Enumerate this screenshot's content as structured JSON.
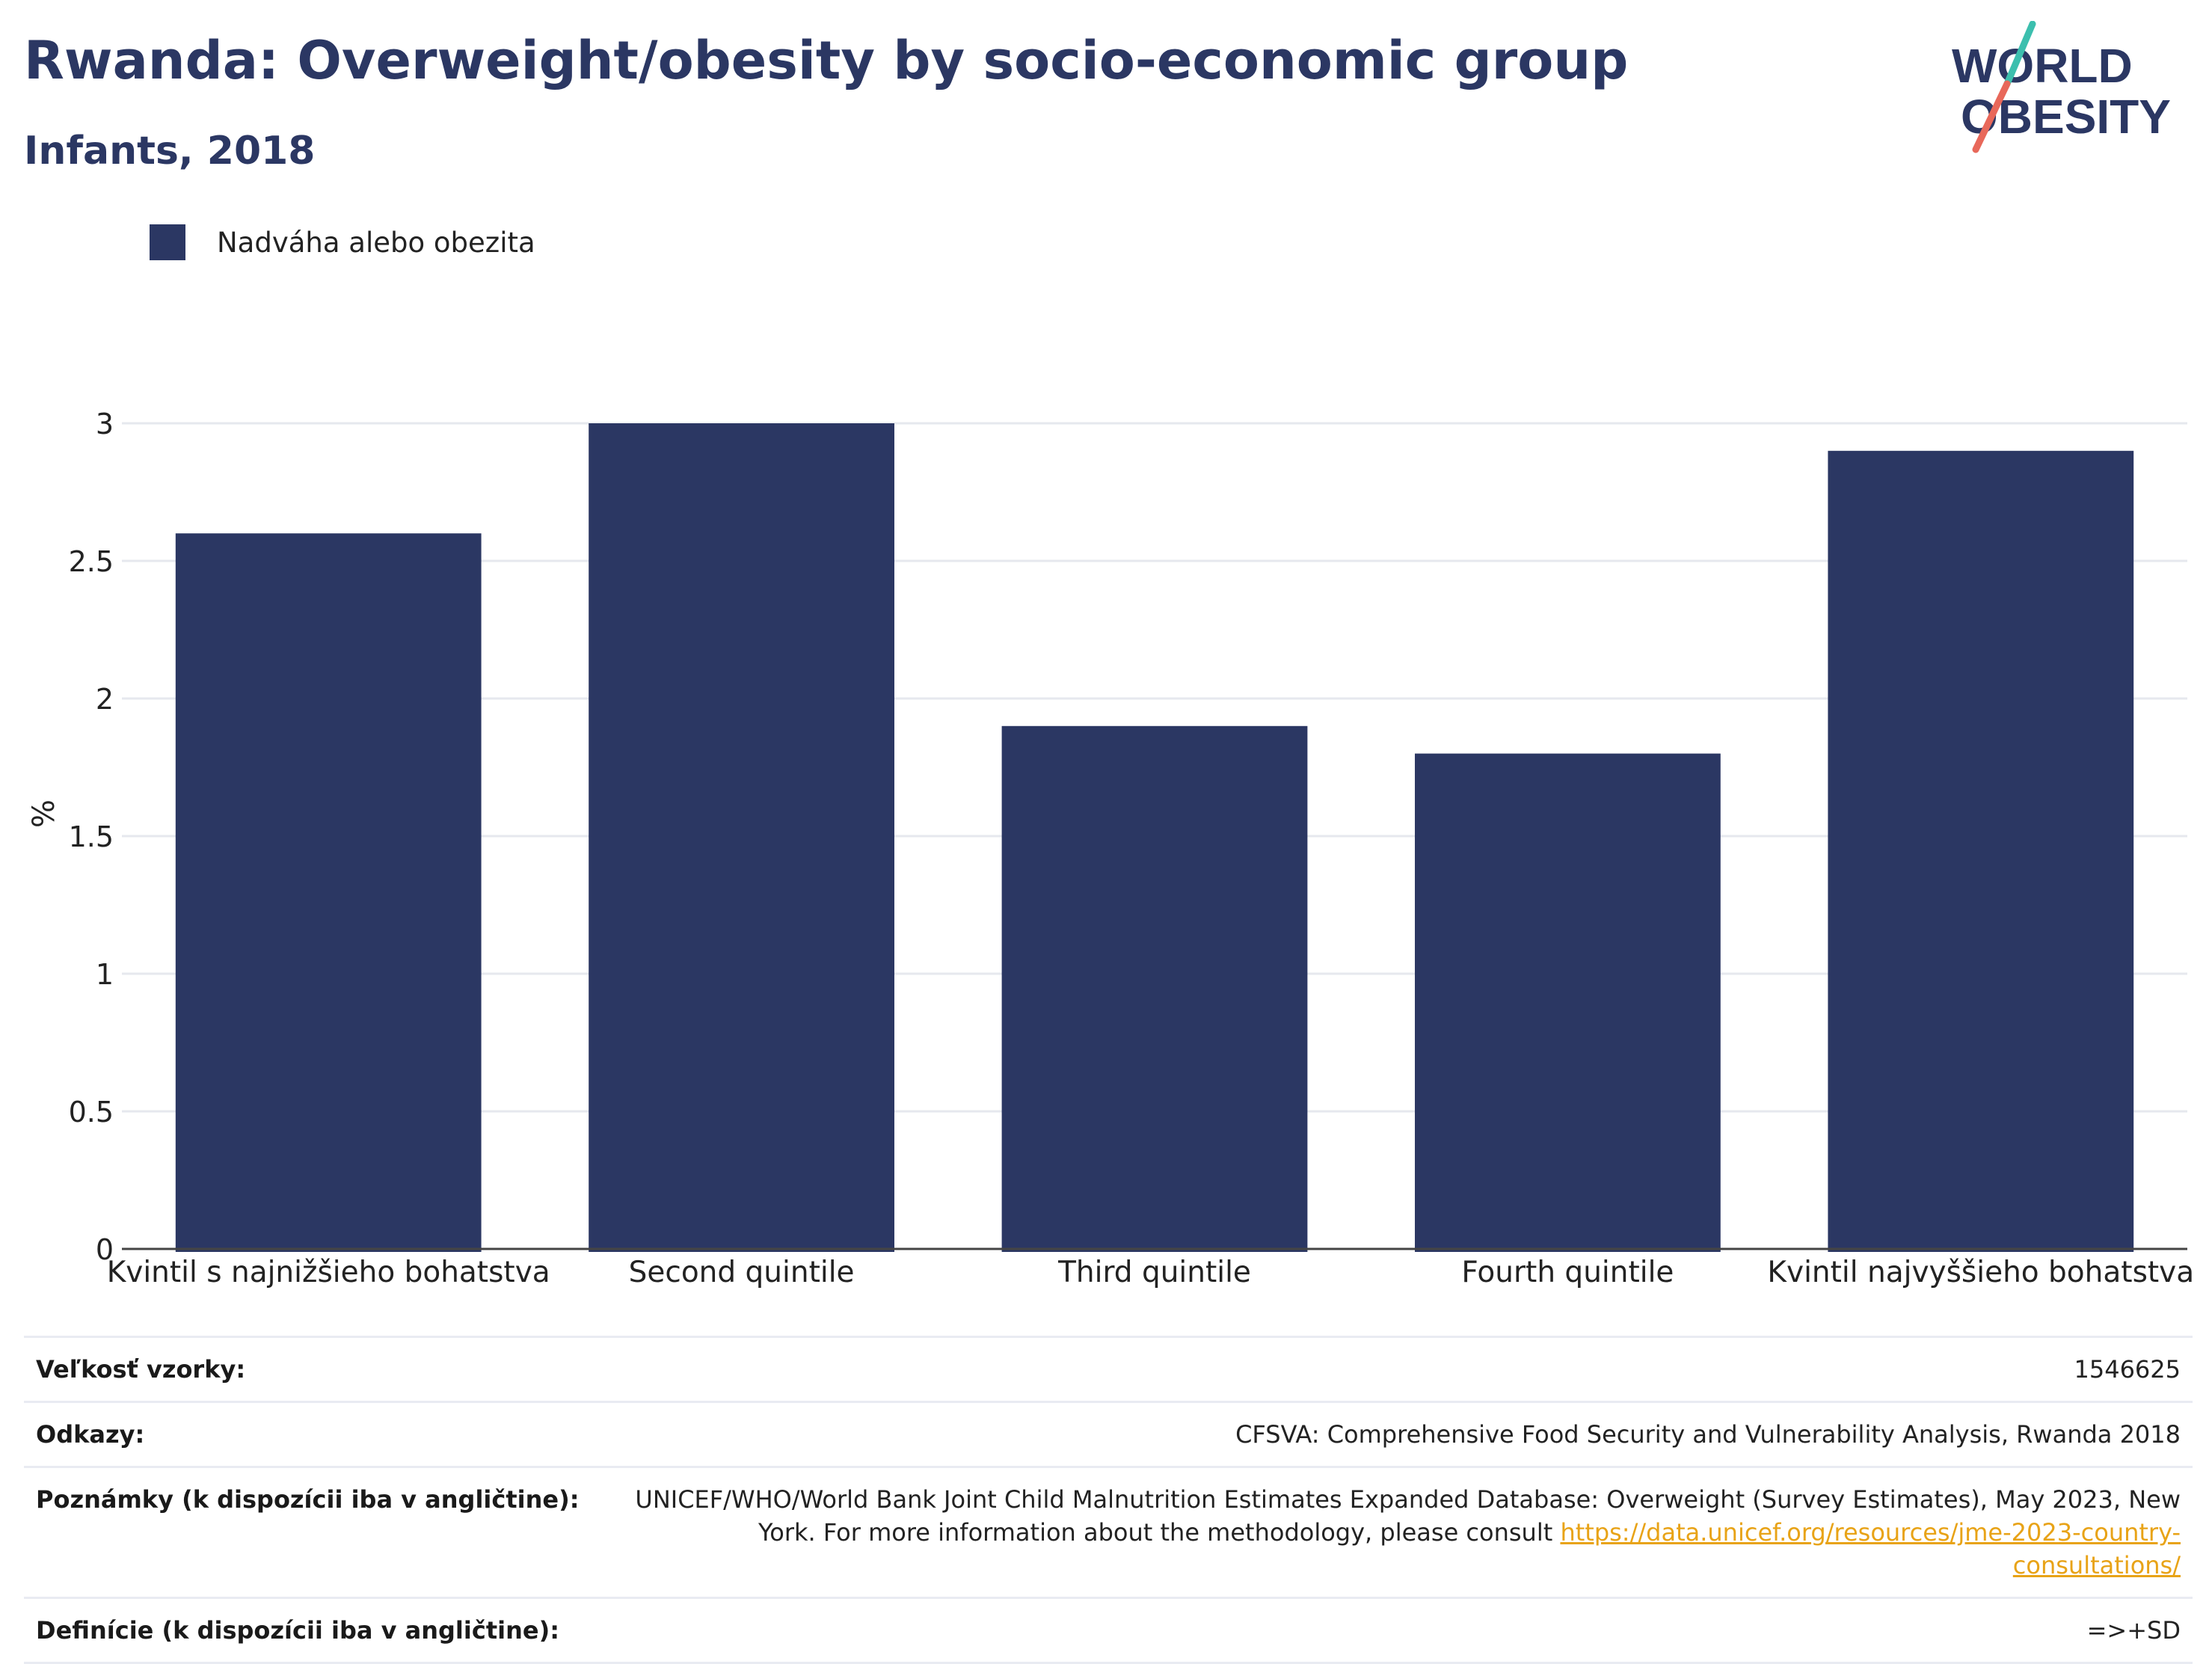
{
  "header": {
    "title": "Rwanda: Overweight/obesity by socio-economic group",
    "subtitle": "Infants, 2018"
  },
  "logo": {
    "line1": "WORLD",
    "line2": "OBESITY",
    "text_color": "#2b3763",
    "stroke_colors": [
      "#3cbfae",
      "#e8685a"
    ]
  },
  "legend": {
    "label": "Nadváha alebo obezita",
    "color": "#2b3763"
  },
  "chart_data": {
    "type": "bar",
    "categories": [
      "Kvintil s najnižšieho bohatstva",
      "Second quintile",
      "Third quintile",
      "Fourth quintile",
      "Kvintil najvyššieho bohatstva"
    ],
    "series": [
      {
        "name": "Nadváha alebo obezita",
        "values": [
          2.6,
          3.0,
          1.9,
          1.8,
          2.9
        ],
        "color": "#2b3763"
      }
    ],
    "ylabel": "%",
    "ylim": [
      0,
      3
    ],
    "yticks": [
      0,
      0.5,
      1,
      1.5,
      2,
      2.5,
      3
    ],
    "ytick_labels": [
      "0",
      "0.5",
      "1",
      "1.5",
      "2",
      "2.5",
      "3"
    ],
    "grid": true,
    "legend_position": "top-left"
  },
  "info": {
    "sample_size_label": "Veľkosť vzorky:",
    "sample_size_value": "1546625",
    "references_label": "Odkazy:",
    "references_value": "CFSVA: Comprehensive Food Security and Vulnerability Analysis, Rwanda 2018",
    "notes_label": "Poznámky (k dispozícii iba v angličtine):",
    "notes_text": "UNICEF/WHO/World Bank Joint Child Malnutrition Estimates Expanded Database: Overweight (Survey Estimates), May 2023, New York. For more information about the methodology, please consult ",
    "notes_link": "https://data.unicef.org/resources/jme-2023-country-consultations/",
    "definitions_label": "Definície (k dispozícii iba v angličtine):",
    "definitions_value": "=>+SD"
  }
}
